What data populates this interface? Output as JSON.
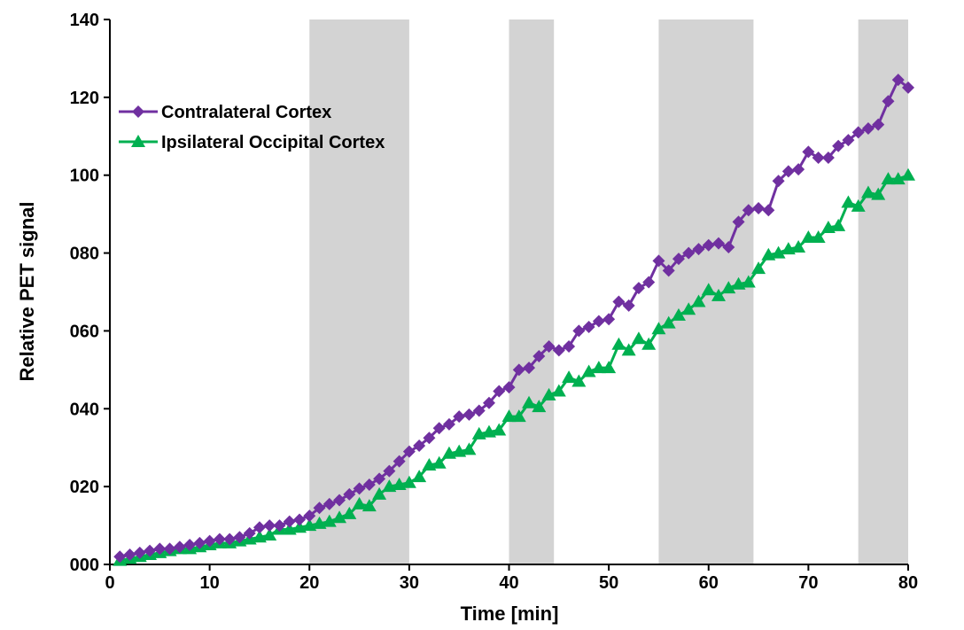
{
  "chart_data": {
    "type": "line",
    "title": "",
    "xlabel": "Time [min]",
    "ylabel": "Relative PET signal",
    "xlim": [
      0,
      80
    ],
    "ylim": [
      0,
      140
    ],
    "x_ticks": [
      0,
      10,
      20,
      30,
      40,
      50,
      60,
      70,
      80
    ],
    "x_tick_labels": [
      "0",
      "10",
      "20",
      "30",
      "40",
      "50",
      "60",
      "70",
      "80"
    ],
    "y_ticks": [
      0,
      20,
      40,
      60,
      80,
      100,
      120,
      140
    ],
    "y_tick_labels": [
      "000",
      "020",
      "040",
      "060",
      "080",
      "100",
      "120",
      "140"
    ],
    "grid": false,
    "legend_position": "top-left",
    "shaded_intervals": [
      [
        20,
        30
      ],
      [
        40,
        44.5
      ],
      [
        55,
        64.5
      ],
      [
        75,
        80
      ]
    ],
    "shade_color": "#d3d3d3",
    "x": [
      1,
      2,
      3,
      4,
      5,
      6,
      7,
      8,
      9,
      10,
      11,
      12,
      13,
      14,
      15,
      16,
      17,
      18,
      19,
      20,
      21,
      22,
      23,
      24,
      25,
      26,
      27,
      28,
      29,
      30,
      31,
      32,
      33,
      34,
      35,
      36,
      37,
      38,
      39,
      40,
      41,
      42,
      43,
      44,
      45,
      46,
      47,
      48,
      49,
      50,
      51,
      52,
      53,
      54,
      55,
      56,
      57,
      58,
      59,
      60,
      61,
      62,
      63,
      64,
      65,
      66,
      67,
      68,
      69,
      70,
      71,
      72,
      73,
      74,
      75,
      76,
      77,
      78,
      79,
      80
    ],
    "series": [
      {
        "name": "Contralateral Cortex",
        "color": "#7030a0",
        "marker": "diamond",
        "values": [
          2,
          2.5,
          3,
          3.5,
          4,
          4,
          4.5,
          5,
          5.5,
          6,
          6.5,
          6.5,
          7,
          8,
          9.5,
          10,
          10,
          11,
          11.5,
          12.5,
          14.5,
          15.5,
          16.5,
          18,
          19.5,
          20.5,
          22,
          24,
          26.5,
          29,
          30.5,
          32.5,
          35,
          36,
          38,
          38.5,
          39.5,
          41.5,
          44.5,
          45.5,
          50,
          50.5,
          53.5,
          56,
          55,
          56,
          60,
          61,
          62.5,
          63,
          67.5,
          66.5,
          71,
          72.5,
          78,
          75.5,
          78.5,
          80,
          81,
          82,
          82.5,
          81.5,
          88,
          91,
          91.5,
          91,
          98.5,
          101,
          101.5,
          106,
          104.5,
          104.5,
          107.5,
          109,
          111,
          112,
          113,
          119,
          124.5,
          122.5
        ]
      },
      {
        "name": "Ipsilateral Occipital Cortex",
        "color": "#00b050",
        "marker": "triangle",
        "values": [
          1,
          1.5,
          2,
          2.5,
          3,
          3.5,
          4,
          4,
          4.5,
          5,
          5.5,
          5.5,
          6,
          6.5,
          7,
          7.5,
          9,
          9,
          9.5,
          10,
          10.5,
          11,
          12,
          13,
          15.5,
          15,
          18,
          20,
          20.5,
          21,
          22.5,
          25.5,
          26,
          28.5,
          29,
          29.5,
          33.5,
          34,
          34.5,
          38,
          38,
          41.5,
          40.5,
          43.5,
          44.5,
          48,
          47,
          49.5,
          50.5,
          50.5,
          56.5,
          55,
          58,
          56.5,
          60.5,
          62,
          64,
          65.5,
          67.5,
          70.5,
          69,
          71,
          72,
          72.5,
          76,
          79.5,
          80,
          81,
          81.5,
          84,
          84,
          86.5,
          87,
          93,
          92,
          95.5,
          95,
          99,
          99,
          100
        ]
      }
    ]
  }
}
